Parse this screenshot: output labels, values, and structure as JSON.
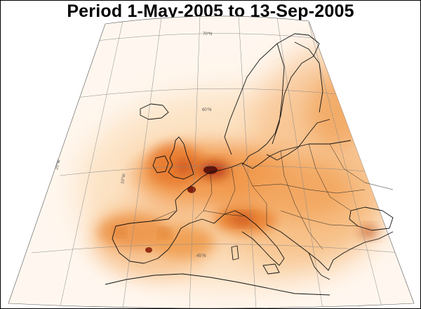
{
  "title": "Period 1-May-2005 to 13-Sep-2005",
  "map": {
    "projection": "conic",
    "colormap": [
      "#fff8f0",
      "#f5b061",
      "#d8501e",
      "#3a0b05"
    ],
    "graticule_labels": {
      "lat_70": "70°N",
      "lat_60": "60°N",
      "lat_45": "45°N",
      "lon_20w": "20°W",
      "lon_10w": "10°W"
    }
  }
}
